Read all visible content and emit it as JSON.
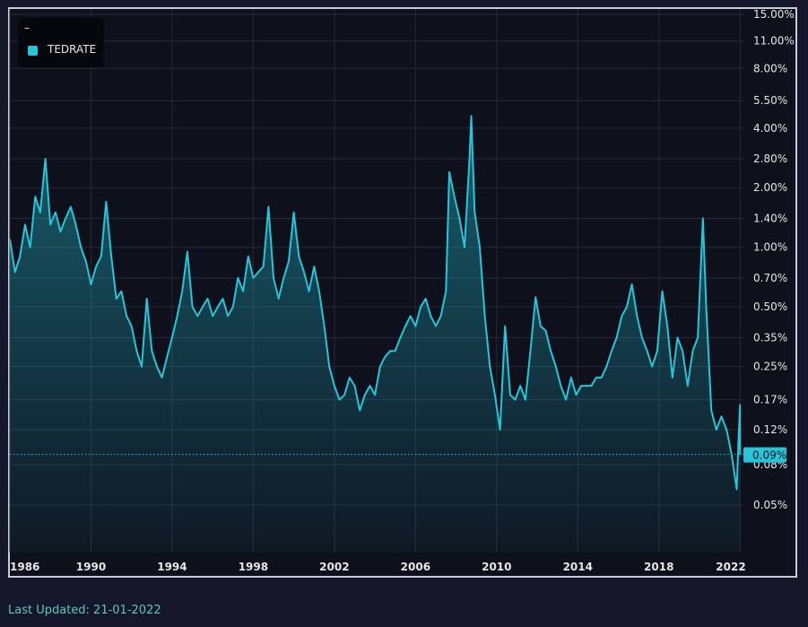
{
  "chart_data": {
    "type": "area",
    "series": [
      {
        "name": "TEDRATE",
        "color": "#26c6da",
        "points": [
          [
            "1986-01",
            1.1
          ],
          [
            "1986-04",
            0.75
          ],
          [
            "1986-07",
            0.9
          ],
          [
            "1986-10",
            1.3
          ],
          [
            "1987-01",
            1.0
          ],
          [
            "1987-04",
            1.8
          ],
          [
            "1987-07",
            1.5
          ],
          [
            "1987-10",
            2.8
          ],
          [
            "1988-01",
            1.3
          ],
          [
            "1988-04",
            1.5
          ],
          [
            "1988-07",
            1.2
          ],
          [
            "1988-10",
            1.4
          ],
          [
            "1989-01",
            1.6
          ],
          [
            "1989-04",
            1.3
          ],
          [
            "1989-07",
            1.0
          ],
          [
            "1989-10",
            0.85
          ],
          [
            "1990-01",
            0.65
          ],
          [
            "1990-04",
            0.8
          ],
          [
            "1990-07",
            0.9
          ],
          [
            "1990-10",
            1.7
          ],
          [
            "1991-01",
            0.9
          ],
          [
            "1991-04",
            0.55
          ],
          [
            "1991-07",
            0.6
          ],
          [
            "1991-10",
            0.45
          ],
          [
            "1992-01",
            0.4
          ],
          [
            "1992-04",
            0.3
          ],
          [
            "1992-07",
            0.25
          ],
          [
            "1992-10",
            0.55
          ],
          [
            "1993-01",
            0.3
          ],
          [
            "1993-04",
            0.25
          ],
          [
            "1993-07",
            0.22
          ],
          [
            "1993-10",
            0.28
          ],
          [
            "1994-01",
            0.35
          ],
          [
            "1994-04",
            0.45
          ],
          [
            "1994-07",
            0.6
          ],
          [
            "1994-10",
            0.95
          ],
          [
            "1995-01",
            0.5
          ],
          [
            "1995-04",
            0.45
          ],
          [
            "1995-07",
            0.5
          ],
          [
            "1995-10",
            0.55
          ],
          [
            "1996-01",
            0.45
          ],
          [
            "1996-04",
            0.5
          ],
          [
            "1996-07",
            0.55
          ],
          [
            "1996-10",
            0.45
          ],
          [
            "1997-01",
            0.5
          ],
          [
            "1997-04",
            0.7
          ],
          [
            "1997-07",
            0.6
          ],
          [
            "1997-10",
            0.9
          ],
          [
            "1998-01",
            0.7
          ],
          [
            "1998-04",
            0.75
          ],
          [
            "1998-07",
            0.8
          ],
          [
            "1998-10",
            1.6
          ],
          [
            "1999-01",
            0.7
          ],
          [
            "1999-04",
            0.55
          ],
          [
            "1999-07",
            0.7
          ],
          [
            "1999-10",
            0.85
          ],
          [
            "2000-01",
            1.5
          ],
          [
            "2000-04",
            0.9
          ],
          [
            "2000-07",
            0.75
          ],
          [
            "2000-10",
            0.6
          ],
          [
            "2001-01",
            0.8
          ],
          [
            "2001-04",
            0.6
          ],
          [
            "2001-07",
            0.4
          ],
          [
            "2001-10",
            0.25
          ],
          [
            "2002-01",
            0.2
          ],
          [
            "2002-04",
            0.17
          ],
          [
            "2002-07",
            0.18
          ],
          [
            "2002-10",
            0.22
          ],
          [
            "2003-01",
            0.2
          ],
          [
            "2003-04",
            0.15
          ],
          [
            "2003-07",
            0.18
          ],
          [
            "2003-10",
            0.2
          ],
          [
            "2004-01",
            0.18
          ],
          [
            "2004-04",
            0.25
          ],
          [
            "2004-07",
            0.28
          ],
          [
            "2004-10",
            0.3
          ],
          [
            "2005-01",
            0.3
          ],
          [
            "2005-04",
            0.35
          ],
          [
            "2005-07",
            0.4
          ],
          [
            "2005-10",
            0.45
          ],
          [
            "2006-01",
            0.4
          ],
          [
            "2006-04",
            0.5
          ],
          [
            "2006-07",
            0.55
          ],
          [
            "2006-10",
            0.45
          ],
          [
            "2007-01",
            0.4
          ],
          [
            "2007-04",
            0.45
          ],
          [
            "2007-07",
            0.6
          ],
          [
            "2007-09",
            2.4
          ],
          [
            "2007-12",
            1.8
          ],
          [
            "2008-03",
            1.4
          ],
          [
            "2008-06",
            1.0
          ],
          [
            "2008-09",
            2.9
          ],
          [
            "2008-10",
            4.6
          ],
          [
            "2008-12",
            1.5
          ],
          [
            "2009-03",
            1.0
          ],
          [
            "2009-06",
            0.45
          ],
          [
            "2009-09",
            0.25
          ],
          [
            "2009-12",
            0.18
          ],
          [
            "2010-03",
            0.12
          ],
          [
            "2010-06",
            0.4
          ],
          [
            "2010-09",
            0.18
          ],
          [
            "2010-12",
            0.17
          ],
          [
            "2011-03",
            0.2
          ],
          [
            "2011-06",
            0.17
          ],
          [
            "2011-09",
            0.3
          ],
          [
            "2011-12",
            0.56
          ],
          [
            "2012-03",
            0.4
          ],
          [
            "2012-06",
            0.38
          ],
          [
            "2012-09",
            0.3
          ],
          [
            "2012-12",
            0.25
          ],
          [
            "2013-03",
            0.2
          ],
          [
            "2013-06",
            0.17
          ],
          [
            "2013-09",
            0.22
          ],
          [
            "2013-12",
            0.18
          ],
          [
            "2014-03",
            0.2
          ],
          [
            "2014-06",
            0.2
          ],
          [
            "2014-09",
            0.2
          ],
          [
            "2014-12",
            0.22
          ],
          [
            "2015-03",
            0.22
          ],
          [
            "2015-06",
            0.25
          ],
          [
            "2015-09",
            0.3
          ],
          [
            "2015-12",
            0.35
          ],
          [
            "2016-03",
            0.45
          ],
          [
            "2016-06",
            0.5
          ],
          [
            "2016-09",
            0.65
          ],
          [
            "2016-12",
            0.45
          ],
          [
            "2017-03",
            0.35
          ],
          [
            "2017-06",
            0.3
          ],
          [
            "2017-09",
            0.25
          ],
          [
            "2017-12",
            0.3
          ],
          [
            "2018-03",
            0.6
          ],
          [
            "2018-06",
            0.4
          ],
          [
            "2018-09",
            0.22
          ],
          [
            "2018-12",
            0.35
          ],
          [
            "2019-03",
            0.3
          ],
          [
            "2019-06",
            0.2
          ],
          [
            "2019-09",
            0.3
          ],
          [
            "2019-12",
            0.35
          ],
          [
            "2020-03",
            1.4
          ],
          [
            "2020-05",
            0.5
          ],
          [
            "2020-08",
            0.15
          ],
          [
            "2020-11",
            0.12
          ],
          [
            "2021-02",
            0.14
          ],
          [
            "2021-05",
            0.12
          ],
          [
            "2021-08",
            0.09
          ],
          [
            "2021-11",
            0.06
          ],
          [
            "2021-12",
            0.1
          ],
          [
            "2022-01",
            0.16
          ],
          [
            "2022-01",
            0.09
          ]
        ]
      }
    ],
    "y_scale": "log",
    "y_ticks": [
      "15.00%",
      "11.00%",
      "8.00%",
      "5.50%",
      "4.00%",
      "2.80%",
      "2.00%",
      "1.40%",
      "1.00%",
      "0.70%",
      "0.50%",
      "0.35%",
      "0.25%",
      "0.17%",
      "0.12%",
      "0.08%",
      "0.05%"
    ],
    "y_tick_values": [
      15,
      11,
      8,
      5.5,
      4,
      2.8,
      2,
      1.4,
      1,
      0.7,
      0.5,
      0.35,
      0.25,
      0.17,
      0.12,
      0.08,
      0.05
    ],
    "x_ticks": [
      "1986",
      "1990",
      "1994",
      "1998",
      "2002",
      "2006",
      "2010",
      "2014",
      "2018",
      "2022"
    ],
    "x_range": [
      "1986-01",
      "2022-03"
    ],
    "last_value": 0.09,
    "last_value_label": "0.09%",
    "grid": true,
    "legend_position": "top-left"
  },
  "legend": {
    "title": "–",
    "items": [
      {
        "label": "TEDRATE",
        "color": "#26c6da"
      }
    ]
  },
  "footer": {
    "last_updated_text": "Last Updated: 21-01-2022"
  },
  "colors": {
    "background": "#131729",
    "plot_background": "#0e111c",
    "line": "#26c6da",
    "grid": "#2a2f3d",
    "axis_text": "#e6e6e6"
  }
}
